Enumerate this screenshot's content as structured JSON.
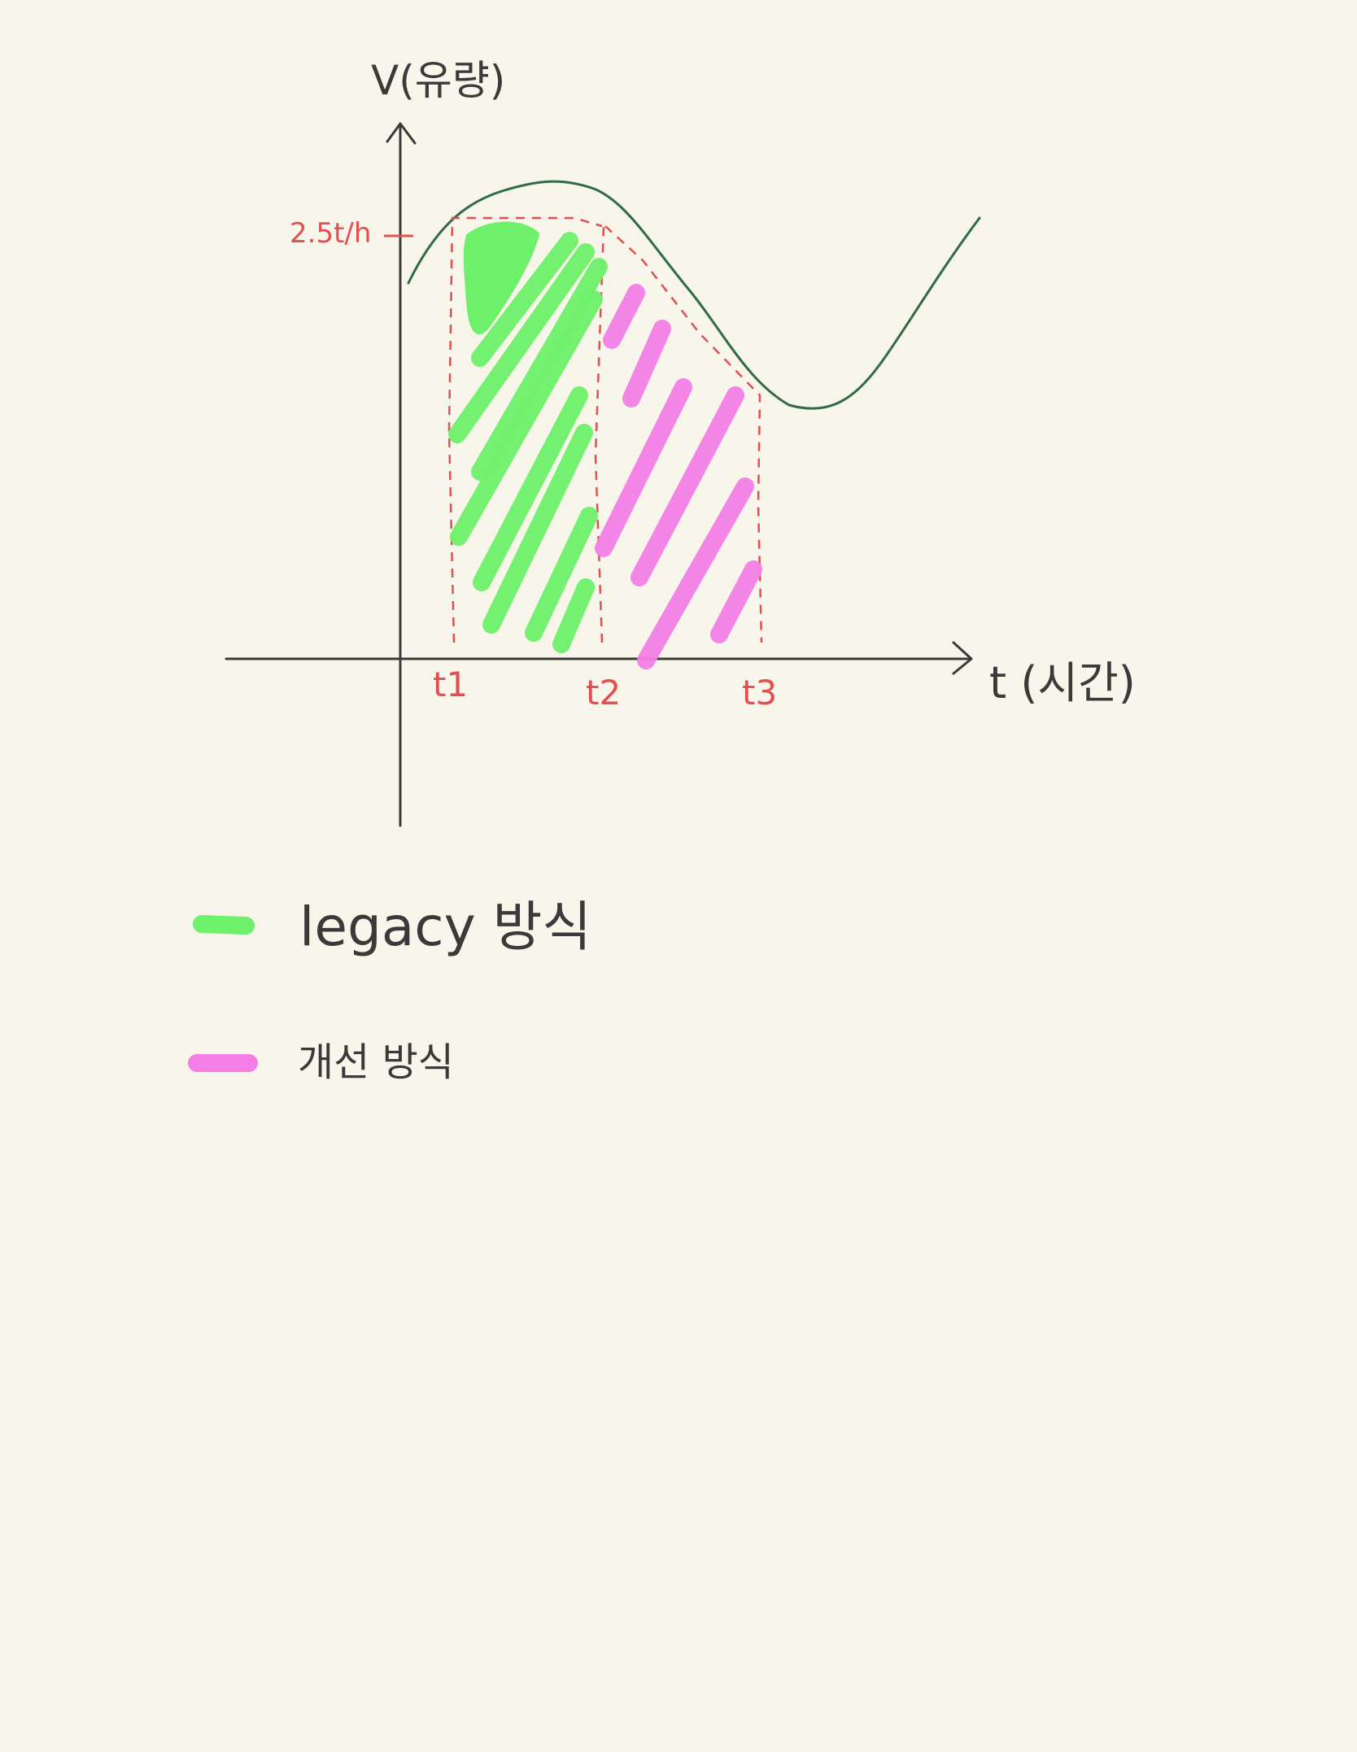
{
  "diagram": {
    "y_axis_label": "V(유량)",
    "x_axis_label": "t (시간)",
    "level_label": "2.5t/h",
    "time_marks": [
      "t1",
      "t2",
      "t3"
    ]
  },
  "legend": [
    {
      "label": "legacy 방식",
      "color": "#6ef06a"
    },
    {
      "label": "개선 방식",
      "color": "#f27ee6"
    }
  ],
  "colors": {
    "background": "#f8f5ea",
    "axis": "#3a3a3a",
    "curve": "#2f6b48",
    "annotation": "#e05050",
    "legacy": "#6ef06a",
    "improved": "#f27ee6"
  }
}
